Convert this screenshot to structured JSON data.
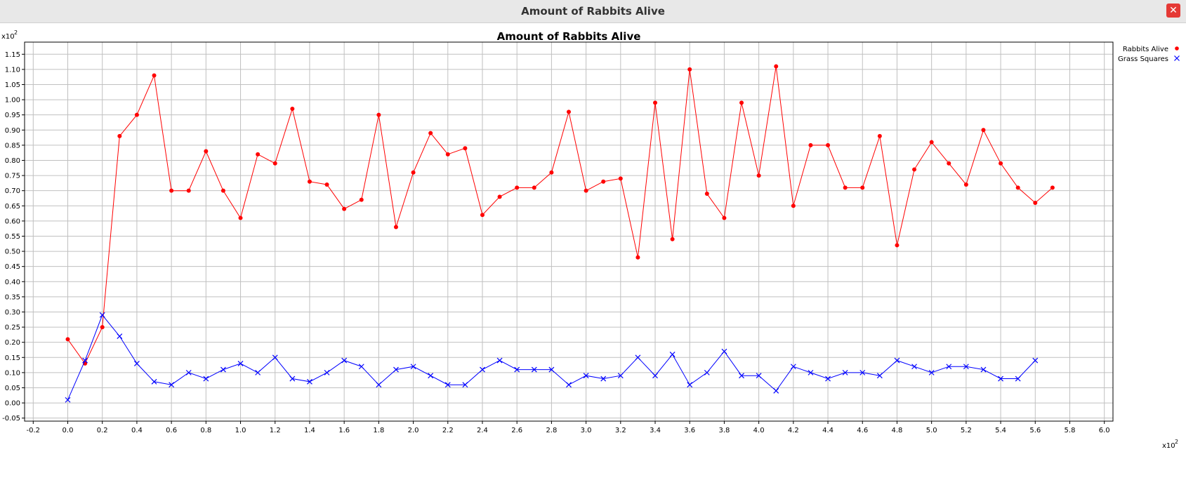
{
  "window": {
    "title": "Amount of Rabbits Alive",
    "close_glyph": "✕"
  },
  "chart_data": {
    "type": "line",
    "title": "Amount of Rabbits Alive",
    "xlabel": "",
    "ylabel": "",
    "x_multiplier_label": "x10",
    "x_multiplier_exp": "2",
    "y_multiplier_label": "x10",
    "y_multiplier_exp": "2",
    "xlim": [
      -0.25,
      6.05
    ],
    "ylim": [
      -0.06,
      1.19
    ],
    "xticks": [
      -0.2,
      0.0,
      0.2,
      0.4,
      0.6,
      0.8,
      1.0,
      1.2,
      1.4,
      1.6,
      1.8,
      2.0,
      2.2,
      2.4,
      2.6,
      2.8,
      3.0,
      3.2,
      3.4,
      3.6,
      3.8,
      4.0,
      4.2,
      4.4,
      4.6,
      4.8,
      5.0,
      5.2,
      5.4,
      5.6,
      5.8,
      6.0
    ],
    "yticks": [
      -0.05,
      0.0,
      0.05,
      0.1,
      0.15,
      0.2,
      0.25,
      0.3,
      0.35,
      0.4,
      0.45,
      0.5,
      0.55,
      0.6,
      0.65,
      0.7,
      0.75,
      0.8,
      0.85,
      0.9,
      0.95,
      1.0,
      1.05,
      1.1,
      1.15
    ],
    "grid": true,
    "legend_position": "top-right, outside plot",
    "series": [
      {
        "name": "Rabbits Alive",
        "color": "#ff0000",
        "marker": "circle",
        "x": [
          0.0,
          0.1,
          0.2,
          0.3,
          0.4,
          0.5,
          0.6,
          0.7,
          0.8,
          0.9,
          1.0,
          1.1,
          1.2,
          1.3,
          1.4,
          1.5,
          1.6,
          1.7,
          1.8,
          1.9,
          2.0,
          2.1,
          2.2,
          2.3,
          2.4,
          2.5,
          2.6,
          2.7,
          2.8,
          2.9,
          3.0,
          3.1,
          3.2,
          3.3,
          3.4,
          3.5,
          3.6,
          3.7,
          3.8,
          3.9,
          4.0,
          4.1,
          4.2,
          4.3,
          4.4,
          4.5,
          4.6,
          4.7,
          4.8,
          4.9,
          5.0,
          5.1,
          5.2,
          5.3,
          5.4,
          5.5,
          5.6,
          5.7
        ],
        "y": [
          0.21,
          0.13,
          0.25,
          0.88,
          0.95,
          1.08,
          0.7,
          0.7,
          0.83,
          0.7,
          0.61,
          0.82,
          0.79,
          0.97,
          0.73,
          0.72,
          0.64,
          0.67,
          0.95,
          0.58,
          0.76,
          0.89,
          0.82,
          0.84,
          0.62,
          0.68,
          0.71,
          0.71,
          0.76,
          0.96,
          0.7,
          0.73,
          0.74,
          0.48,
          0.99,
          0.54,
          1.1,
          0.69,
          0.61,
          0.99,
          0.75,
          1.11,
          0.65,
          0.85,
          0.85,
          0.71,
          0.71,
          0.88,
          0.52,
          0.77,
          0.86,
          0.79,
          0.72,
          0.9,
          0.79,
          0.71,
          0.66,
          0.71
        ]
      },
      {
        "name": "Grass Squares",
        "color": "#0000ff",
        "marker": "x",
        "x": [
          0.0,
          0.1,
          0.2,
          0.3,
          0.4,
          0.5,
          0.6,
          0.7,
          0.8,
          0.9,
          1.0,
          1.1,
          1.2,
          1.3,
          1.4,
          1.5,
          1.6,
          1.7,
          1.8,
          1.9,
          2.0,
          2.1,
          2.2,
          2.3,
          2.4,
          2.5,
          2.6,
          2.7,
          2.8,
          2.9,
          3.0,
          3.1,
          3.2,
          3.3,
          3.4,
          3.5,
          3.6,
          3.7,
          3.8,
          3.9,
          4.0,
          4.1,
          4.2,
          4.3,
          4.4,
          4.5,
          4.6,
          4.7,
          4.8,
          4.9,
          5.0,
          5.1,
          5.2,
          5.3,
          5.4,
          5.5,
          5.6
        ],
        "y": [
          0.01,
          0.14,
          0.29,
          0.22,
          0.13,
          0.07,
          0.06,
          0.1,
          0.08,
          0.11,
          0.13,
          0.1,
          0.15,
          0.08,
          0.07,
          0.1,
          0.14,
          0.12,
          0.06,
          0.11,
          0.12,
          0.09,
          0.06,
          0.06,
          0.11,
          0.14,
          0.11,
          0.11,
          0.11,
          0.06,
          0.09,
          0.08,
          0.09,
          0.15,
          0.09,
          0.16,
          0.06,
          0.1,
          0.17,
          0.09,
          0.09,
          0.04,
          0.12,
          0.1,
          0.08,
          0.1,
          0.1,
          0.09,
          0.14,
          0.12,
          0.1,
          0.12,
          0.12,
          0.11,
          0.08,
          0.08,
          0.14
        ]
      }
    ]
  }
}
